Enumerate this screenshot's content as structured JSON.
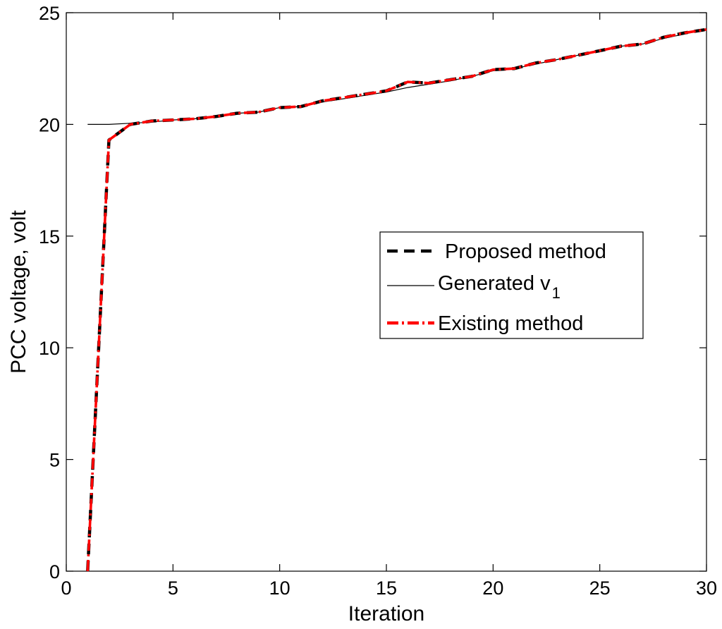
{
  "chart_data": {
    "type": "line",
    "title": "",
    "xlabel": "Iteration",
    "ylabel": "PCC voltage,  volt",
    "xlim": [
      0,
      30
    ],
    "ylim": [
      0,
      25
    ],
    "xticks": [
      "0",
      "5",
      "10",
      "15",
      "20",
      "25",
      "30"
    ],
    "yticks": [
      "0",
      "5",
      "10",
      "15",
      "20",
      "25"
    ],
    "grid": false,
    "legend_position": "right",
    "series": [
      {
        "name": "Proposed method",
        "style": "dashed",
        "color": "#000000",
        "x": [
          1,
          2,
          3,
          4,
          5,
          6,
          7,
          8,
          9,
          10,
          11,
          12,
          13,
          14,
          15,
          16,
          17,
          18,
          19,
          20,
          21,
          22,
          23,
          24,
          25,
          26,
          27,
          28,
          29,
          30
        ],
        "y": [
          0,
          19.3,
          20.0,
          20.15,
          20.2,
          20.25,
          20.35,
          20.5,
          20.55,
          20.75,
          20.8,
          21.05,
          21.2,
          21.35,
          21.5,
          21.9,
          21.85,
          22.0,
          22.15,
          22.45,
          22.5,
          22.75,
          22.9,
          23.1,
          23.3,
          23.5,
          23.6,
          23.9,
          24.1,
          24.25
        ]
      },
      {
        "name": "Generated  v",
        "name_subscript": "1",
        "style": "solid",
        "color": "#000000",
        "x": [
          1,
          2,
          3,
          4,
          5,
          6,
          7,
          8,
          9,
          10,
          11,
          12,
          13,
          14,
          15,
          16,
          17,
          18,
          19,
          20,
          21,
          22,
          23,
          24,
          25,
          26,
          27,
          28,
          29,
          30
        ],
        "y": [
          20.0,
          20.0,
          20.05,
          20.1,
          20.2,
          20.25,
          20.35,
          20.5,
          20.55,
          20.75,
          20.8,
          21.0,
          21.15,
          21.3,
          21.45,
          21.65,
          21.8,
          21.95,
          22.15,
          22.4,
          22.5,
          22.7,
          22.9,
          23.1,
          23.3,
          23.5,
          23.6,
          23.85,
          24.05,
          24.25
        ]
      },
      {
        "name": "Existing method",
        "style": "dashdot",
        "color": "#ff0000",
        "x": [
          1,
          2,
          3,
          4,
          5,
          6,
          7,
          8,
          9,
          10,
          11,
          12,
          13,
          14,
          15,
          16,
          17,
          18,
          19,
          20,
          21,
          22,
          23,
          24,
          25,
          26,
          27,
          28,
          29,
          30
        ],
        "y": [
          0,
          19.3,
          20.0,
          20.15,
          20.2,
          20.25,
          20.35,
          20.5,
          20.55,
          20.75,
          20.8,
          21.05,
          21.2,
          21.35,
          21.5,
          21.9,
          21.85,
          22.0,
          22.15,
          22.45,
          22.5,
          22.75,
          22.9,
          23.1,
          23.3,
          23.5,
          23.6,
          23.9,
          24.1,
          24.25
        ]
      }
    ]
  }
}
